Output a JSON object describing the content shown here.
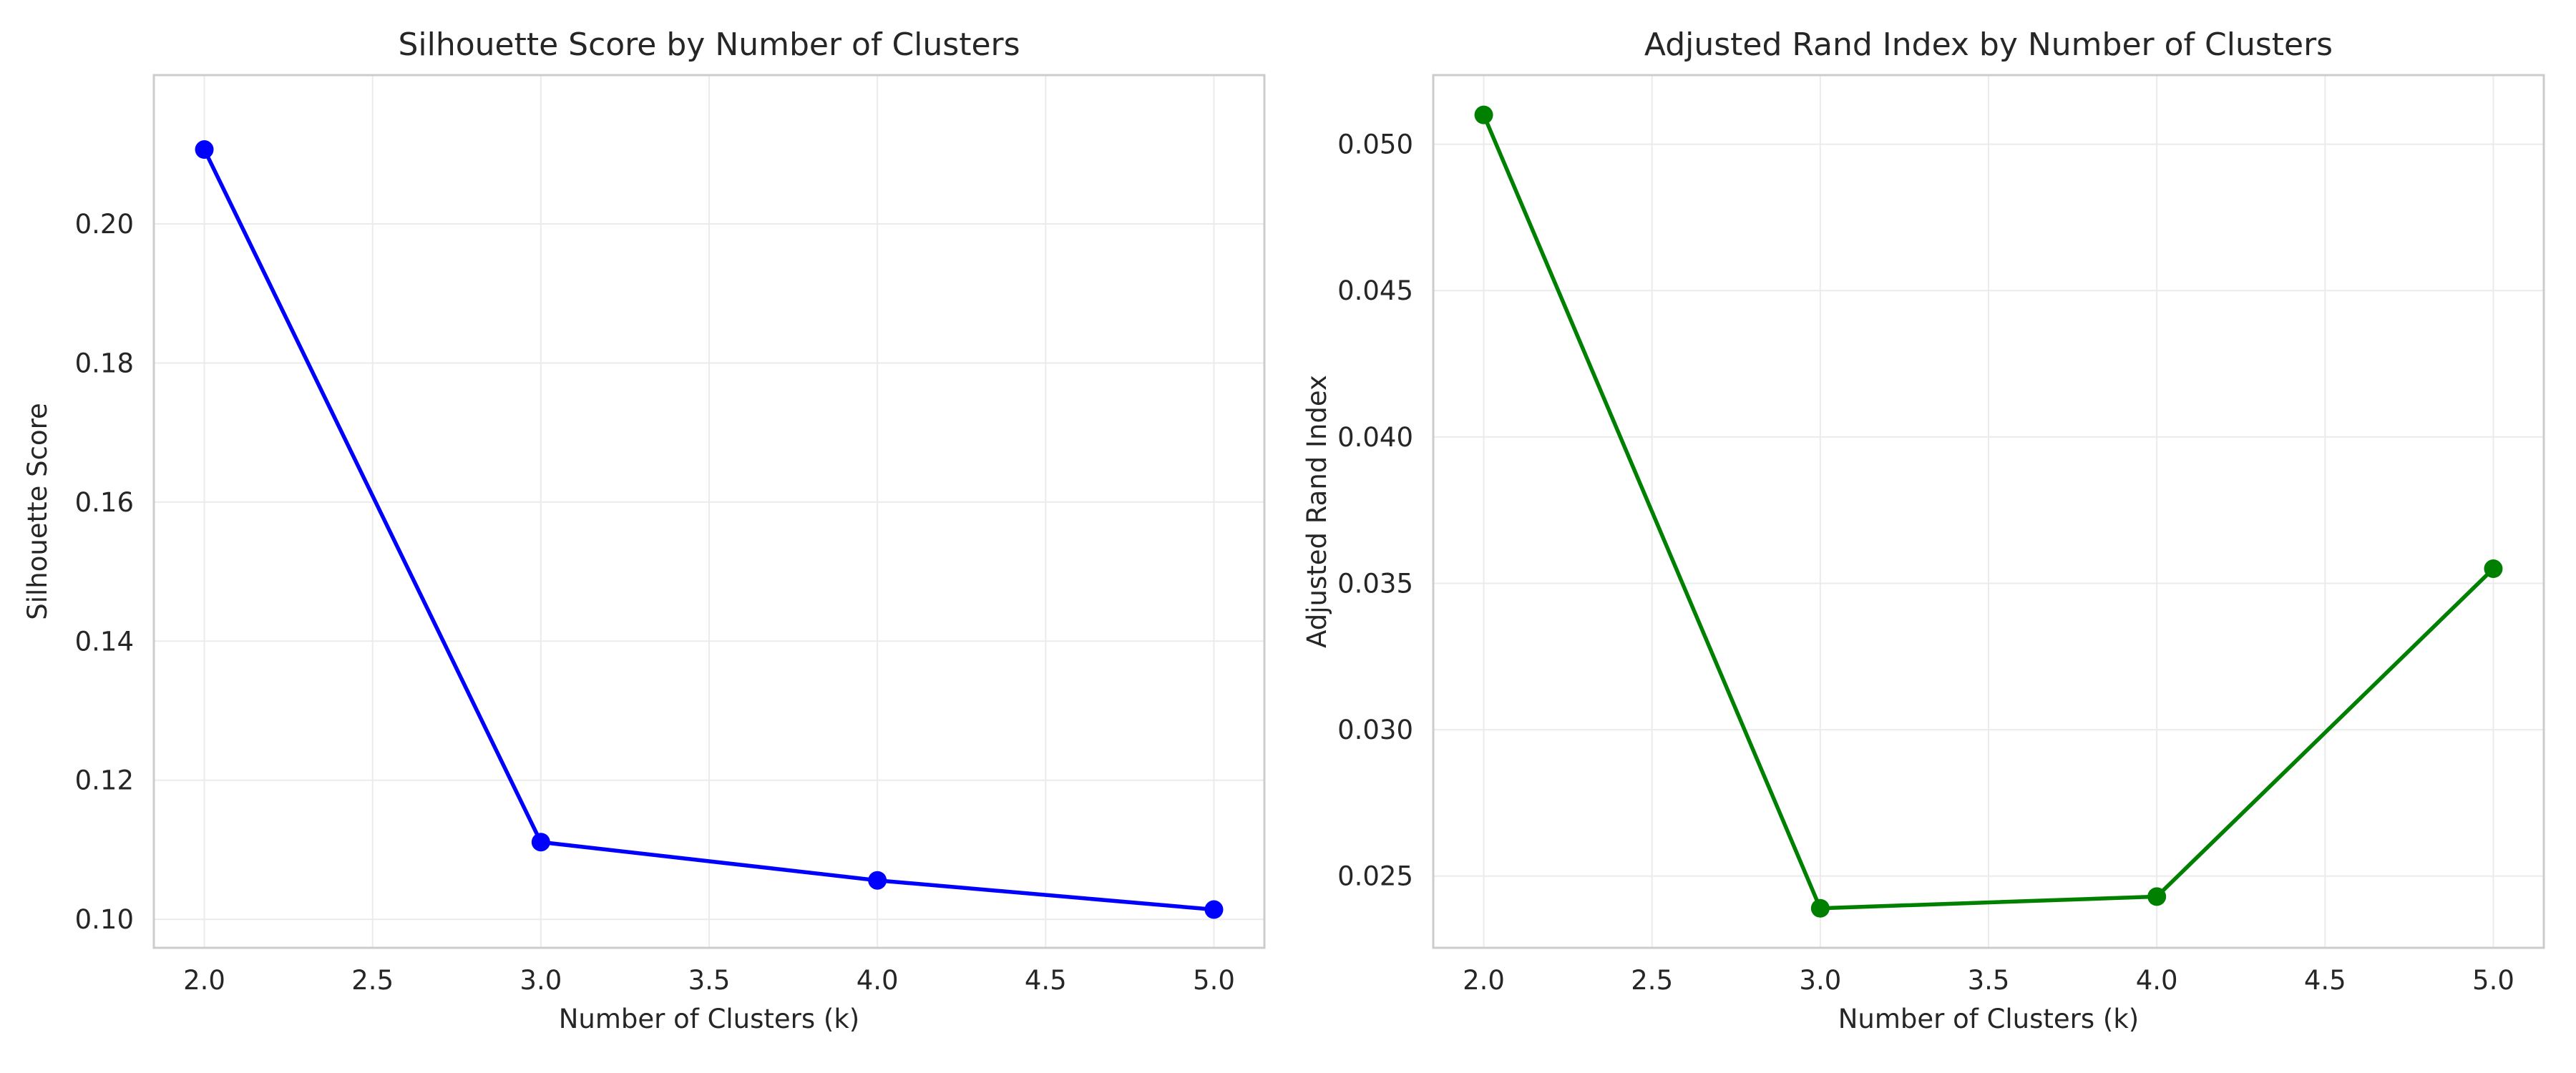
{
  "chart_data": [
    {
      "type": "line",
      "title": "Silhouette Score by Number of Clusters",
      "xlabel": "Number of Clusters (k)",
      "ylabel": "Silhouette Score",
      "x": [
        2,
        3,
        4,
        5
      ],
      "series": [
        {
          "values": [
            0.2107,
            0.1111,
            0.1056,
            0.1014
          ],
          "color": "#0000ff",
          "marker": "circle"
        }
      ],
      "xlim": [
        1.85,
        5.15
      ],
      "ylim": [
        0.0959,
        0.2214
      ],
      "xticks": [
        2.0,
        2.5,
        3.0,
        3.5,
        4.0,
        4.5,
        5.0
      ],
      "xtick_labels": [
        "2.0",
        "2.5",
        "3.0",
        "3.5",
        "4.0",
        "4.5",
        "5.0"
      ],
      "yticks": [
        0.1,
        0.12,
        0.14,
        0.16,
        0.18,
        0.2
      ],
      "ytick_labels": [
        "0.10",
        "0.12",
        "0.14",
        "0.16",
        "0.18",
        "0.20"
      ],
      "grid": true,
      "legend": "none"
    },
    {
      "type": "line",
      "title": "Adjusted Rand Index by Number of Clusters",
      "xlabel": "Number of Clusters (k)",
      "ylabel": "Adjusted Rand Index",
      "x": [
        2,
        3,
        4,
        5
      ],
      "series": [
        {
          "values": [
            0.051,
            0.0239,
            0.0243,
            0.0355
          ],
          "color": "#008000",
          "marker": "circle"
        }
      ],
      "xlim": [
        1.85,
        5.15
      ],
      "ylim": [
        0.02255,
        0.05236
      ],
      "xticks": [
        2.0,
        2.5,
        3.0,
        3.5,
        4.0,
        4.5,
        5.0
      ],
      "xtick_labels": [
        "2.0",
        "2.5",
        "3.0",
        "3.5",
        "4.0",
        "4.5",
        "5.0"
      ],
      "yticks": [
        0.025,
        0.03,
        0.035,
        0.04,
        0.045,
        0.05
      ],
      "ytick_labels": [
        "0.025",
        "0.030",
        "0.035",
        "0.040",
        "0.045",
        "0.050"
      ],
      "grid": true,
      "legend": "none"
    }
  ]
}
